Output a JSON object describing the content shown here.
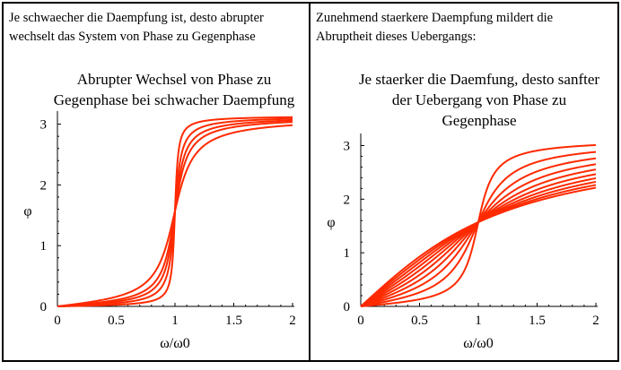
{
  "chart_data": [
    {
      "type": "line",
      "caption": [
        "Je schwaecher die Daempfung ist, desto abrupter",
        "wechselt das System von Phase zu Gegenphase"
      ],
      "title": [
        "Abrupter Wechsel von Phase zu",
        "Gegenphase bei schwacher Daempfung"
      ],
      "xlabel": "ω/ω0",
      "ylabel": "φ",
      "xlim": [
        0,
        2
      ],
      "ylim": [
        0,
        3.14159
      ],
      "x_ticks": [
        "0",
        "0.5",
        "1",
        "1.5",
        "2"
      ],
      "y_ticks": [
        "0",
        "1",
        "2",
        "3"
      ],
      "line_color": "#ff2a00",
      "curve": "phase = atan2(2*D*x, 1 - x^2), x = ω/ω0",
      "damping_values": [
        0.02,
        0.04,
        0.06,
        0.08,
        0.12
      ]
    },
    {
      "type": "line",
      "caption": [
        "Zunehmend staerkere Daempfung mildert die",
        "Abruptheit dieses Uebergangs:"
      ],
      "title": [
        "Je staerker die Daemfung, desto sanfter",
        "der Uebergang von Phase zu",
        "Gegenphase"
      ],
      "xlabel": "ω/ω0",
      "ylabel": "φ",
      "xlim": [
        0,
        2
      ],
      "ylim": [
        0,
        3.14159
      ],
      "x_ticks": [
        "0",
        "0.5",
        "1",
        "1.5",
        "2"
      ],
      "y_ticks": [
        "0",
        "1",
        "2",
        "3"
      ],
      "line_color": "#ff2a00",
      "curve": "phase = atan2(2*D*x, 1 - x^2), x = ω/ω0",
      "damping_values": [
        0.1,
        0.2,
        0.3,
        0.4,
        0.5,
        0.6,
        0.7,
        0.8,
        0.9,
        1.0
      ]
    }
  ]
}
